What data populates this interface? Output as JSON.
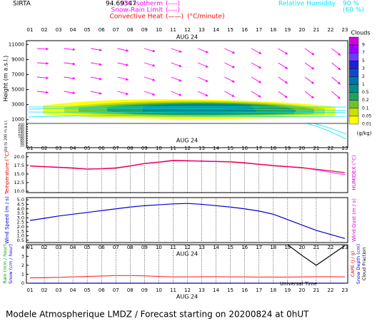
{
  "station": "SIRTA",
  "coords": "94.69347",
  "legend": [
    {
      "name": "0°C isotherm",
      "style": "(----)",
      "color": "#ff00ff"
    },
    {
      "name": "Snow-Rain Limit",
      "style": "(----)",
      "color": "#ff00ff"
    },
    {
      "name": "Convective Heat",
      "style": "(——)",
      "unit": "(°C/minute)",
      "color": "#ff0000"
    }
  ],
  "humidity": {
    "name": "Relative Humidity",
    "levels": [
      "90 %",
      "(60 %)"
    ],
    "color": "#00e5ff"
  },
  "footer": "Modele Atmospherique LMDZ / Forecast starting on 20200824 at 0hUT",
  "chart_data": [
    {
      "type": "cloud",
      "date": "AUG 24",
      "categories": [
        "01",
        "02",
        "03",
        "04",
        "05",
        "06",
        "07",
        "08",
        "09",
        "10",
        "11",
        "12",
        "13",
        "14",
        "15",
        "16",
        "17",
        "18",
        "19",
        "20",
        "21",
        "22",
        "23"
      ],
      "ylabel": "Height (m a.s.l.)",
      "ylim": [
        500,
        11500
      ],
      "yticks": [
        1000,
        3000,
        5000,
        7000,
        9000,
        11000
      ],
      "ylabel_low": "Up to 200 m a.s.l.",
      "ylim_low": [
        0,
        210
      ],
      "yticks_low": [
        20,
        40,
        60,
        80,
        100,
        120,
        140,
        160,
        180,
        200
      ],
      "colorbar": {
        "title": "Clouds",
        "unit": "(g/kg)",
        "levels": [
          {
            "value": 9,
            "color": "#d000e0"
          },
          {
            "value": 7,
            "color": "#9a00ff"
          },
          {
            "value": 5,
            "color": "#6a3cff"
          },
          {
            "value": 3,
            "color": "#2020d0"
          },
          {
            "value": 2,
            "color": "#1048c8"
          },
          {
            "value": 1,
            "color": "#0070b0"
          },
          {
            "value": 0.5,
            "color": "#008c88"
          },
          {
            "value": 0.2,
            "color": "#20a060"
          },
          {
            "value": 0.1,
            "color": "#70c030"
          },
          {
            "value": 0.05,
            "color": "#c8e000"
          },
          {
            "value": 0.01,
            "color": "#ffff00"
          }
        ]
      }
    },
    {
      "type": "line",
      "ylabel": "Temperature (°C)",
      "y2label": "HUMIDEX (°C)",
      "ylabel_color": "#e00000",
      "y2label_color": "#e000e0",
      "ylim": [
        9.6,
        21.2
      ],
      "yticks": [
        {
          "value": 10,
          "label": "10.0"
        },
        {
          "value": 12.5,
          "label": "12.5"
        },
        {
          "value": 15,
          "label": "15.0"
        },
        {
          "value": 17.5,
          "label": "17.5"
        },
        {
          "value": 20,
          "label": "20.0"
        }
      ],
      "series": [
        {
          "color": "#ff40ff",
          "values": [
            17.4,
            17.2,
            17.0,
            16.8,
            16.5,
            16.6,
            16.8,
            17.4,
            18.1,
            18.5,
            19.0,
            18.9,
            18.8,
            18.7,
            18.6,
            18.3,
            17.9,
            17.5,
            17.2,
            16.9,
            16.2,
            15.5,
            14.8
          ]
        },
        {
          "color": "#e00030",
          "values": [
            17.3,
            17.1,
            16.9,
            16.7,
            16.4,
            16.5,
            16.7,
            17.3,
            18.0,
            18.4,
            18.9,
            18.8,
            18.7,
            18.6,
            18.5,
            18.2,
            17.8,
            17.4,
            17.1,
            16.8,
            16.4,
            15.9,
            15.4
          ]
        }
      ]
    },
    {
      "type": "line",
      "ylabel": "Wind Speed (m / s)",
      "y2label": "Wind Gust (m / s)",
      "ylabel_color": "#0000e0",
      "y2label_color": "#e000e0",
      "ylim": [
        0.25,
        5.25
      ],
      "yticks": [
        {
          "value": 0.5,
          "label": "0.5"
        },
        {
          "value": 1,
          "label": "1.0"
        },
        {
          "value": 1.5,
          "label": "1.5"
        },
        {
          "value": 2,
          "label": "2.0"
        },
        {
          "value": 2.5,
          "label": "2.5"
        },
        {
          "value": 3,
          "label": "3.0"
        },
        {
          "value": 3.5,
          "label": "3.5"
        },
        {
          "value": 4,
          "label": "4.0"
        },
        {
          "value": 4.5,
          "label": "4.5"
        },
        {
          "value": 5,
          "label": "5.0"
        }
      ],
      "series": [
        {
          "color": "#0000d0",
          "values": [
            2.7,
            2.95,
            3.2,
            3.4,
            3.6,
            3.8,
            4.0,
            4.2,
            4.35,
            4.45,
            4.55,
            4.6,
            4.5,
            4.35,
            4.2,
            4.0,
            3.75,
            3.4,
            2.8,
            2.2,
            1.6,
            1.15,
            0.7
          ]
        }
      ]
    },
    {
      "type": "line",
      "xlabel": "Universal Time",
      "ylabels": [
        {
          "text": "Rain (mm / hour)",
          "color": "#00a000"
        },
        {
          "text": "Snow (cm / hour)",
          "color": "#0000e0"
        }
      ],
      "y2labels": [
        {
          "text": "CAPE (J / g)",
          "color": "#e00000"
        },
        {
          "text": "Snow Depth (cm)",
          "color": "#0000e0"
        },
        {
          "text": "Cloud Fraction",
          "color": "#000000"
        }
      ],
      "ylim": [
        0,
        4.3
      ],
      "yticks": [
        0,
        1,
        2,
        3,
        4
      ],
      "series": [
        {
          "color": "#0000d0",
          "values": [
            0,
            0,
            0,
            0,
            0,
            0,
            0,
            0,
            0,
            0,
            0,
            0,
            0,
            0,
            0,
            0,
            0,
            0,
            0,
            0,
            0,
            0,
            0
          ]
        },
        {
          "color": "#ff3030",
          "values": [
            0.6,
            0.62,
            0.65,
            0.7,
            0.75,
            0.8,
            0.85,
            0.85,
            0.82,
            0.75,
            0.7,
            0.7,
            0.72,
            0.72,
            0.7,
            0.7,
            0.68,
            0.68,
            0.68,
            0.7,
            0.72,
            0.72,
            0.7
          ]
        },
        {
          "color": "#000000",
          "values": [
            null,
            null,
            null,
            null,
            null,
            null,
            null,
            null,
            null,
            null,
            null,
            null,
            null,
            null,
            null,
            null,
            null,
            null,
            4.3,
            3.1,
            2.0,
            3.1,
            4.2
          ]
        }
      ]
    }
  ]
}
